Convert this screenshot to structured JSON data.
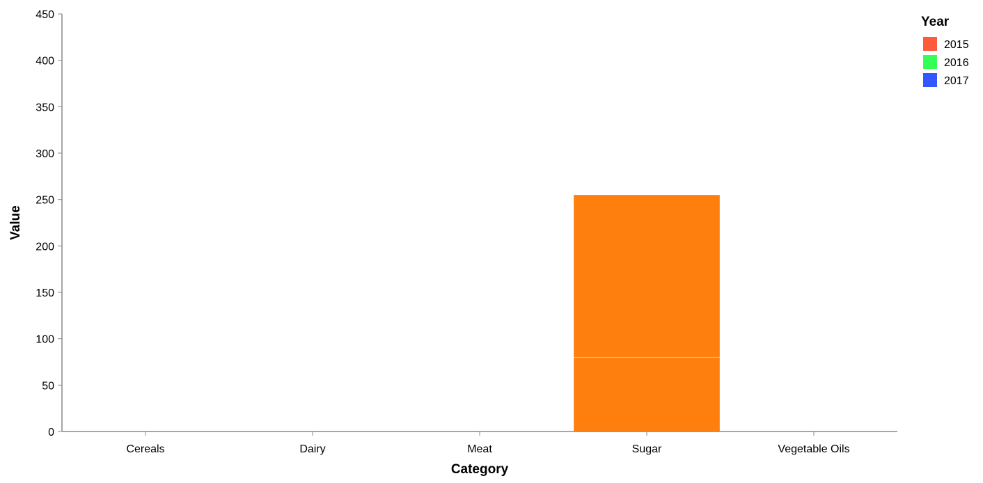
{
  "chart_data": {
    "type": "bar",
    "stacked": true,
    "xlabel": "Category",
    "ylabel": "Value",
    "ylim": [
      0,
      450
    ],
    "yticks": [
      0,
      50,
      100,
      150,
      200,
      250,
      300,
      350,
      400,
      450
    ],
    "categories": [
      "Cereals",
      "Dairy",
      "Meat",
      "Sugar",
      "Vegetable Oils"
    ],
    "segments": [
      {
        "category": "Sugar",
        "from": 0,
        "to": 80,
        "color": "#ff7f0e"
      },
      {
        "category": "Sugar",
        "from": 80,
        "to": 255,
        "color": "#ff7f0e"
      }
    ],
    "legend": {
      "title": "Year",
      "position": "top-right",
      "items": [
        {
          "label": "2015",
          "color": "#ff5a3c"
        },
        {
          "label": "2016",
          "color": "#33ff57"
        },
        {
          "label": "2017",
          "color": "#3357ff"
        }
      ]
    },
    "grid": false
  }
}
